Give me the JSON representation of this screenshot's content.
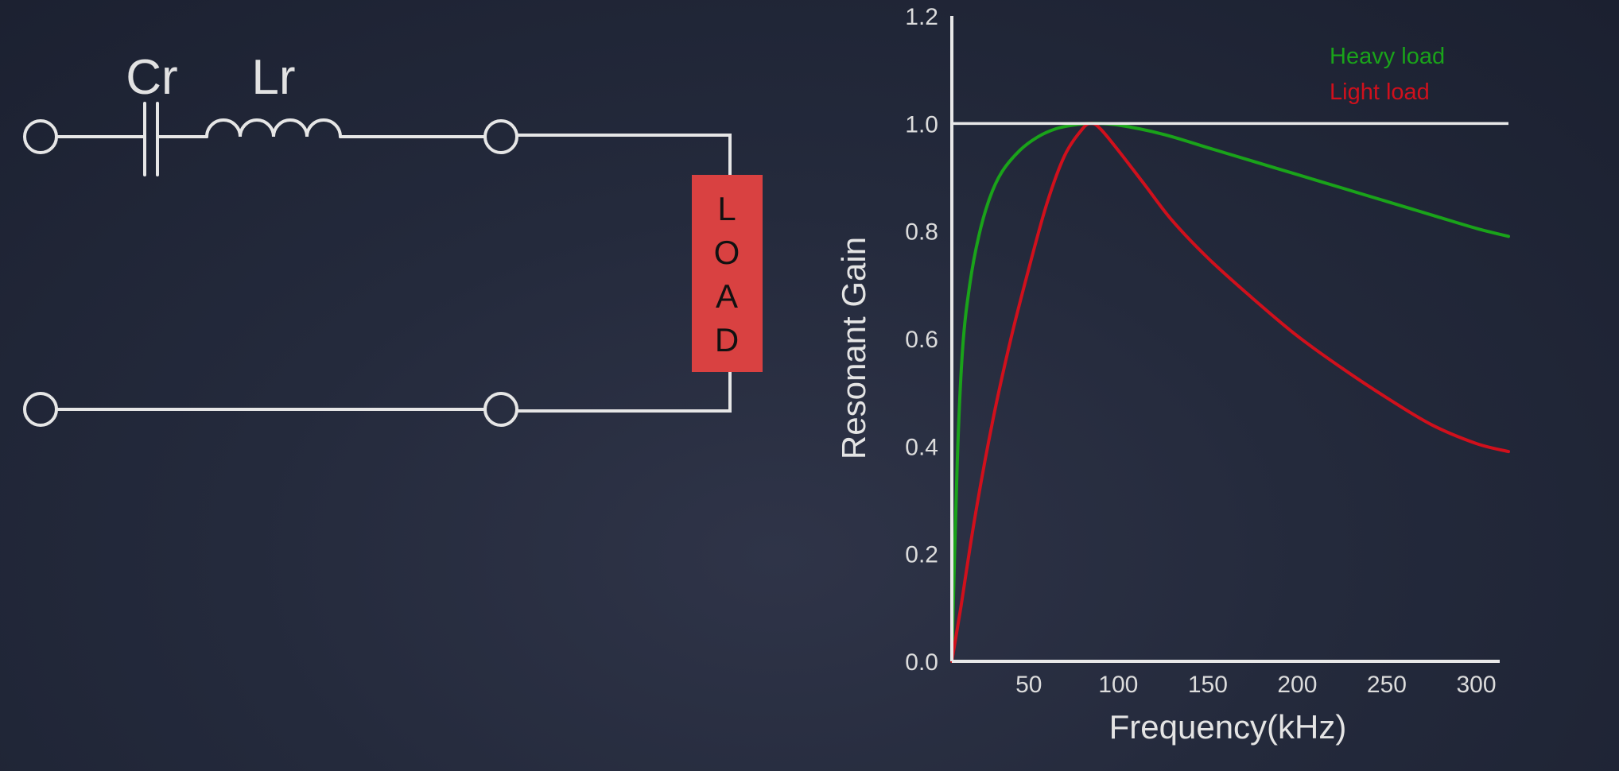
{
  "circuit": {
    "capacitor_label": "Cr",
    "inductor_label": "Lr",
    "load_letters": [
      "L",
      "O",
      "A",
      "D"
    ]
  },
  "chart_data": {
    "type": "line",
    "xlabel": "Frequency(kHz)",
    "ylabel": "Resonant Gain",
    "xlim": [
      7,
      318
    ],
    "ylim": [
      0,
      1.2
    ],
    "x_ticks": [
      "50",
      "100",
      "150",
      "200",
      "250",
      "300"
    ],
    "x_tick_values": [
      50,
      100,
      150,
      200,
      250,
      300
    ],
    "y_ticks": [
      "0.0",
      "0.2",
      "0.4",
      "0.6",
      "0.8",
      "1.0",
      "1.2"
    ],
    "y_tick_values": [
      0,
      0.2,
      0.4,
      0.6,
      0.8,
      1.0,
      1.2
    ],
    "reference_line": 1.0,
    "legend_position": "top-right",
    "grid": false,
    "series": [
      {
        "name": "Heavy load",
        "color": "#1aa31a",
        "x": [
          7,
          10,
          13,
          17,
          22,
          28,
          35,
          45,
          55,
          65,
          75,
          85,
          100,
          125,
          150,
          175,
          200,
          225,
          250,
          275,
          300,
          318
        ],
        "y": [
          0.0,
          0.37,
          0.58,
          0.7,
          0.79,
          0.86,
          0.91,
          0.95,
          0.975,
          0.99,
          0.997,
          1.0,
          0.997,
          0.98,
          0.955,
          0.93,
          0.905,
          0.88,
          0.855,
          0.83,
          0.805,
          0.79
        ]
      },
      {
        "name": "Light load",
        "color": "#d0101c",
        "x": [
          7,
          12,
          20,
          30,
          40,
          50,
          60,
          70,
          80,
          85,
          90,
          100,
          115,
          130,
          150,
          175,
          200,
          225,
          250,
          275,
          300,
          318
        ],
        "y": [
          0.0,
          0.1,
          0.27,
          0.45,
          0.6,
          0.73,
          0.85,
          0.94,
          0.99,
          1.0,
          0.99,
          0.95,
          0.885,
          0.82,
          0.75,
          0.675,
          0.605,
          0.545,
          0.49,
          0.44,
          0.405,
          0.39
        ]
      }
    ]
  }
}
